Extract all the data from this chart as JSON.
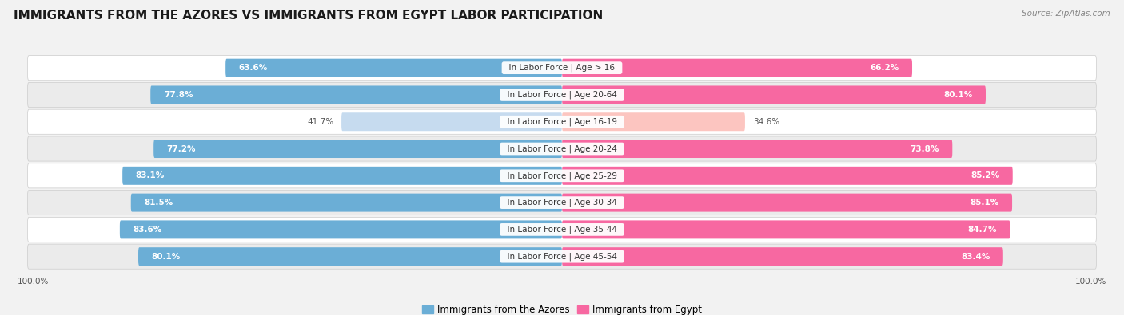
{
  "title": "IMMIGRANTS FROM THE AZORES VS IMMIGRANTS FROM EGYPT LABOR PARTICIPATION",
  "source": "Source: ZipAtlas.com",
  "categories": [
    "In Labor Force | Age > 16",
    "In Labor Force | Age 20-64",
    "In Labor Force | Age 16-19",
    "In Labor Force | Age 20-24",
    "In Labor Force | Age 25-29",
    "In Labor Force | Age 30-34",
    "In Labor Force | Age 35-44",
    "In Labor Force | Age 45-54"
  ],
  "azores_values": [
    63.6,
    77.8,
    41.7,
    77.2,
    83.1,
    81.5,
    83.6,
    80.1
  ],
  "egypt_values": [
    66.2,
    80.1,
    34.6,
    73.8,
    85.2,
    85.1,
    84.7,
    83.4
  ],
  "azores_color": "#6baed6",
  "azores_color_light": "#c6dbef",
  "egypt_color": "#f768a1",
  "egypt_color_light": "#fcc5c0",
  "background_color": "#f2f2f2",
  "row_bg_even": "#ffffff",
  "row_bg_odd": "#ebebeb",
  "title_fontsize": 11,
  "label_fontsize": 7.5,
  "value_fontsize": 7.5,
  "legend_fontsize": 8.5,
  "max_value": 100.0,
  "bar_height": 0.72
}
